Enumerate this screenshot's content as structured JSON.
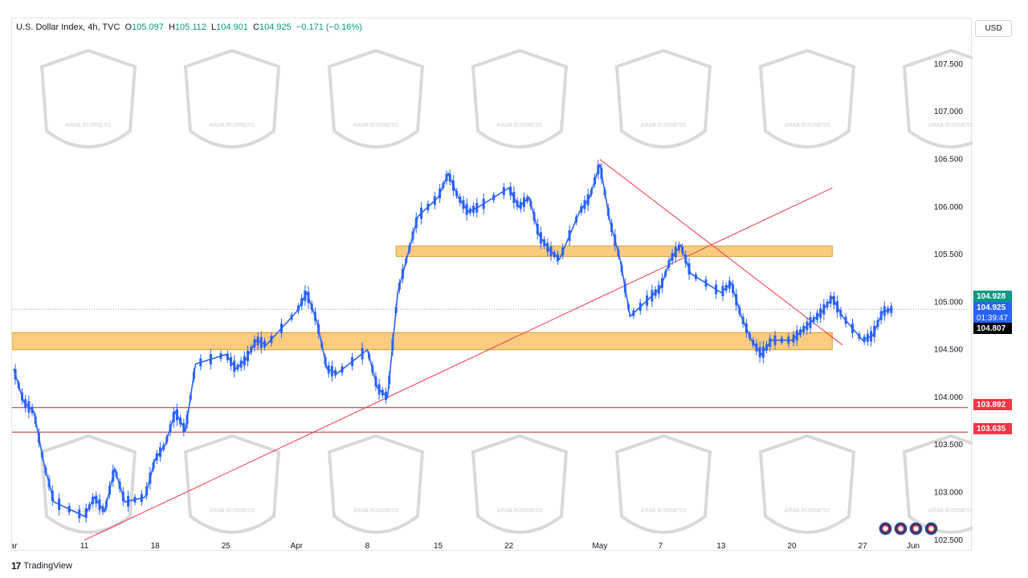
{
  "legend": {
    "symbol": "U.S. Dollar Index, 4h, TVC",
    "open_label": "O",
    "open": "105.097",
    "high_label": "H",
    "high": "105.112",
    "low_label": "L",
    "low": "104.901",
    "close_label": "C",
    "close": "104.925",
    "change": "−0.171 (−0.16%)"
  },
  "currency": "USD",
  "branding": {
    "tradingview": "TradingView",
    "watermark_text": "ARAB BUSINESS"
  },
  "price_tags": {
    "top": "104.928",
    "current": "104.925",
    "countdown": "01:39:47",
    "level_black": "104.807",
    "support_1": "103.892",
    "support_2": "103.635"
  },
  "colors": {
    "up": "#089981",
    "down": "#f23645",
    "candle": "#2962ff",
    "zone": "#f9b13c",
    "trendline": "#f23645",
    "support_line": "#c2272d"
  },
  "chart_data": {
    "type": "candlestick",
    "timeframe": "4h",
    "y_range": [
      102.38,
      107.98
    ],
    "y_ticks": [
      "102.500",
      "103.000",
      "103.500",
      "104.000",
      "104.500",
      "105.000",
      "105.500",
      "106.000",
      "106.500",
      "107.000",
      "107.500"
    ],
    "x_ticks": [
      "ar",
      "11",
      "18",
      "25",
      "Apr",
      "8",
      "15",
      "22",
      "May",
      "7",
      "13",
      "20",
      "27",
      "Jun"
    ],
    "x_range_days": [
      "2024-03-04",
      "2024-06-01"
    ],
    "x_tick_dates": [
      "2024-03-04",
      "2024-03-11",
      "2024-03-18",
      "2024-03-25",
      "2024-04-01",
      "2024-04-08",
      "2024-04-15",
      "2024-04-22",
      "2024-05-01",
      "2024-05-07",
      "2024-05-13",
      "2024-05-20",
      "2024-05-27",
      "2024-06-01"
    ],
    "close_path": [
      [
        "2024-03-04",
        104.3
      ],
      [
        "2024-03-05",
        103.95
      ],
      [
        "2024-03-06",
        103.85
      ],
      [
        "2024-03-07",
        103.3
      ],
      [
        "2024-03-08",
        102.9
      ],
      [
        "2024-03-11",
        102.75
      ],
      [
        "2024-03-12",
        102.95
      ],
      [
        "2024-03-13",
        102.8
      ],
      [
        "2024-03-14",
        103.25
      ],
      [
        "2024-03-15",
        102.9
      ],
      [
        "2024-03-17",
        102.95
      ],
      [
        "2024-03-18",
        103.35
      ],
      [
        "2024-03-19",
        103.5
      ],
      [
        "2024-03-20",
        103.85
      ],
      [
        "2024-03-21",
        103.65
      ],
      [
        "2024-03-22",
        104.35
      ],
      [
        "2024-03-25",
        104.45
      ],
      [
        "2024-03-26",
        104.3
      ],
      [
        "2024-03-27",
        104.4
      ],
      [
        "2024-03-28",
        104.6
      ],
      [
        "2024-03-29",
        104.55
      ],
      [
        "2024-04-01",
        104.9
      ],
      [
        "2024-04-02",
        105.1
      ],
      [
        "2024-04-03",
        104.8
      ],
      [
        "2024-04-04",
        104.3
      ],
      [
        "2024-04-05",
        104.25
      ],
      [
        "2024-04-08",
        104.5
      ],
      [
        "2024-04-09",
        104.1
      ],
      [
        "2024-04-10",
        104.0
      ],
      [
        "2024-04-11",
        105.1
      ],
      [
        "2024-04-12",
        105.5
      ],
      [
        "2024-04-13",
        105.9
      ],
      [
        "2024-04-15",
        106.1
      ],
      [
        "2024-04-16",
        106.35
      ],
      [
        "2024-04-17",
        106.1
      ],
      [
        "2024-04-18",
        105.95
      ],
      [
        "2024-04-19",
        106.0
      ],
      [
        "2024-04-22",
        106.2
      ],
      [
        "2024-04-23",
        106.0
      ],
      [
        "2024-04-24",
        106.1
      ],
      [
        "2024-04-25",
        105.7
      ],
      [
        "2024-04-26",
        105.55
      ],
      [
        "2024-04-27",
        105.45
      ],
      [
        "2024-04-29",
        105.95
      ],
      [
        "2024-04-30",
        106.1
      ],
      [
        "2024-05-01",
        106.45
      ],
      [
        "2024-05-02",
        105.85
      ],
      [
        "2024-05-03",
        105.45
      ],
      [
        "2024-05-04",
        104.85
      ],
      [
        "2024-05-06",
        105.05
      ],
      [
        "2024-05-07",
        105.15
      ],
      [
        "2024-05-08",
        105.45
      ],
      [
        "2024-05-09",
        105.6
      ],
      [
        "2024-05-10",
        105.3
      ],
      [
        "2024-05-13",
        105.1
      ],
      [
        "2024-05-14",
        105.2
      ],
      [
        "2024-05-15",
        104.85
      ],
      [
        "2024-05-16",
        104.6
      ],
      [
        "2024-05-17",
        104.45
      ],
      [
        "2024-05-18",
        104.6
      ],
      [
        "2024-05-20",
        104.6
      ],
      [
        "2024-05-21",
        104.7
      ],
      [
        "2024-05-22",
        104.8
      ],
      [
        "2024-05-23",
        104.9
      ],
      [
        "2024-05-24",
        105.05
      ],
      [
        "2024-05-25",
        104.85
      ],
      [
        "2024-05-27",
        104.6
      ],
      [
        "2024-05-28",
        104.65
      ],
      [
        "2024-05-29",
        104.9
      ],
      [
        "2024-05-30",
        104.925
      ]
    ],
    "zones": [
      {
        "from": "2024-03-04",
        "to": "2024-05-24",
        "y_low": 104.5,
        "y_high": 104.68
      },
      {
        "from": "2024-04-11",
        "to": "2024-05-24",
        "y_low": 105.48,
        "y_high": 105.59
      }
    ],
    "support_levels": [
      103.892,
      103.635
    ],
    "trendlines": [
      {
        "from": [
          "2024-03-11",
          102.5
        ],
        "to": [
          "2024-05-24",
          106.2
        ]
      },
      {
        "from": [
          "2024-05-01",
          106.5
        ],
        "to": [
          "2024-05-25",
          104.55
        ]
      }
    ]
  }
}
